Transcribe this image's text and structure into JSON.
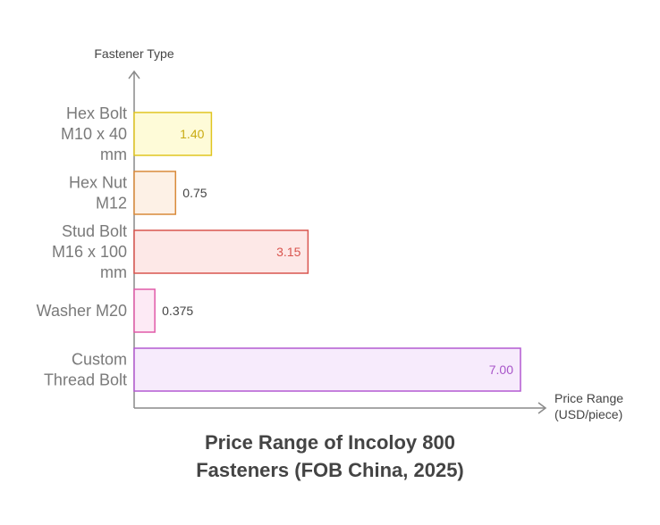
{
  "chart_data": {
    "type": "bar",
    "orientation": "horizontal",
    "categories": [
      [
        "Hex Bolt",
        "M10 x 40",
        "mm"
      ],
      [
        "Hex Nut",
        "M12"
      ],
      [
        "Stud Bolt",
        "M16 x 100",
        "mm"
      ],
      [
        "Washer M20"
      ],
      [
        "Custom",
        "Thread Bolt"
      ]
    ],
    "values": [
      1.4,
      0.75,
      3.15,
      0.375,
      7.0
    ],
    "value_labels": [
      "1.40",
      "0.75",
      "3.15",
      "0.375",
      "7.00"
    ],
    "colors": [
      {
        "stroke": "#e0c520",
        "fill": "#fefbd8",
        "text": "#c9ab12"
      },
      {
        "stroke": "#d98a3a",
        "fill": "#fdf1e6",
        "text": "#444444"
      },
      {
        "stroke": "#d9554f",
        "fill": "#fde8e7",
        "text": "#d9554f"
      },
      {
        "stroke": "#e05aa8",
        "fill": "#fdeaf5",
        "text": "#444444"
      },
      {
        "stroke": "#b45ad2",
        "fill": "#f7ebfc",
        "text": "#a855c9"
      }
    ],
    "ylabel": "Fastener Type",
    "xlabel": [
      "Price Range",
      "(USD/piece)"
    ],
    "title": [
      "Price Range of Incoloy 800",
      "Fasteners (FOB China, 2025)"
    ],
    "xlim": [
      0,
      7.0
    ],
    "grid": false,
    "legend": "none"
  }
}
